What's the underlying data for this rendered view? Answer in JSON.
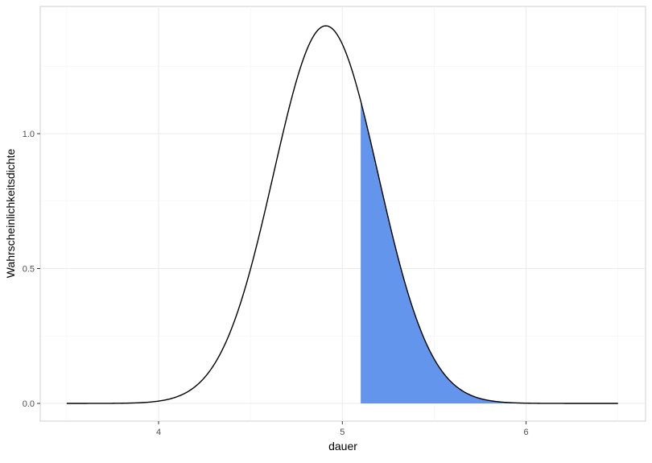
{
  "chart_data": {
    "type": "area",
    "title": "",
    "xlabel": "dauer",
    "ylabel": "Wahrscheinlichkeitsdichte",
    "xlim": [
      3.5,
      6.5
    ],
    "ylim": [
      0,
      1.4
    ],
    "x_ticks": [
      4,
      5,
      6
    ],
    "x_tick_labels": [
      "4",
      "5",
      "6"
    ],
    "y_ticks": [
      0,
      0.5,
      1.0
    ],
    "y_tick_labels": [
      "0.0",
      "0.5",
      "1.0"
    ],
    "grid": true,
    "curve": {
      "distribution": "normal",
      "mean": 4.91,
      "sd": 0.285,
      "x_range": [
        3.5,
        6.5
      ]
    },
    "shaded_region": {
      "x_range": [
        5.1,
        6.0
      ],
      "color": "#6495ED"
    },
    "line_color": "#000000"
  }
}
